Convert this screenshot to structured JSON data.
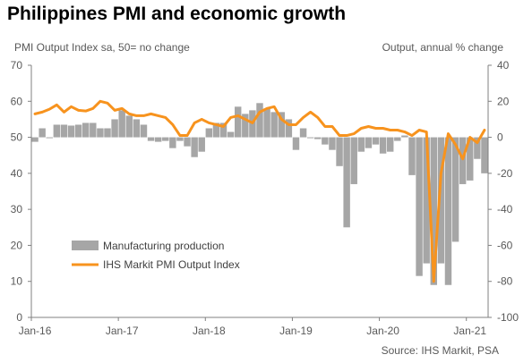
{
  "chart_data": {
    "type": "bar",
    "title": "Philippines PMI and economic growth",
    "left_axis_label": "PMI Output Index sa, 50= no change",
    "right_axis_label": "Output, annual % change",
    "source": "Source: IHS Markit, PSA",
    "x_tick_labels": [
      "Jan-16",
      "Jan-17",
      "Jan-18",
      "Jan-19",
      "Jan-20",
      "Jan-21"
    ],
    "left_ticks": [
      0,
      10,
      20,
      30,
      40,
      50,
      60,
      70
    ],
    "right_ticks": [
      -100,
      -80,
      -60,
      -40,
      -20,
      0,
      20,
      40
    ],
    "left_ylim": [
      0,
      70
    ],
    "right_ylim": [
      -100,
      40
    ],
    "grid": false,
    "legend_position": "bottom-left",
    "series": [
      {
        "name": "Manufacturing production",
        "kind": "bar",
        "axis": "right",
        "color": "#a6a6a6",
        "values": [
          -2.5,
          5,
          0,
          7,
          7,
          6.5,
          7,
          8,
          8,
          5,
          5,
          10,
          15,
          12,
          10,
          7,
          -2,
          -2.5,
          -2,
          -6,
          -2,
          -5,
          -11,
          -8,
          5,
          8,
          8,
          3,
          17,
          13,
          15,
          19,
          16,
          14,
          14,
          10,
          -7,
          5,
          0,
          -1,
          -4,
          -7,
          -16,
          -50,
          -26,
          -8,
          -6,
          -4,
          -9,
          -8,
          -2,
          1,
          -21,
          -77,
          -70,
          -82,
          -70,
          -82,
          -58,
          -26,
          -24,
          -12,
          -20
        ]
      },
      {
        "name": "IHS Markit PMI Output Index",
        "kind": "line",
        "axis": "left",
        "color": "#f7931e",
        "values": [
          56.5,
          57.0,
          57.8,
          59.0,
          57.0,
          58.5,
          57.5,
          57.3,
          58.0,
          60.0,
          59.5,
          57.5,
          58.0,
          56.5,
          56.0,
          56.0,
          56.5,
          56.0,
          55.5,
          53.5,
          50.5,
          50.5,
          54.0,
          55.0,
          54.0,
          53.5,
          53.0,
          55.5,
          56.0,
          55.0,
          54.0,
          57.0,
          58.0,
          58.5,
          55.0,
          53.5,
          53.5,
          55.5,
          57.0,
          55.5,
          53.0,
          53.0,
          50.5,
          50.5,
          51.0,
          52.5,
          53.0,
          52.5,
          52.5,
          52.0,
          52.0,
          51.5,
          50.5,
          52.0,
          51.5,
          10.0,
          40.0,
          51.0,
          48.0,
          44.0,
          50.0,
          48.5,
          52.0
        ]
      }
    ]
  }
}
